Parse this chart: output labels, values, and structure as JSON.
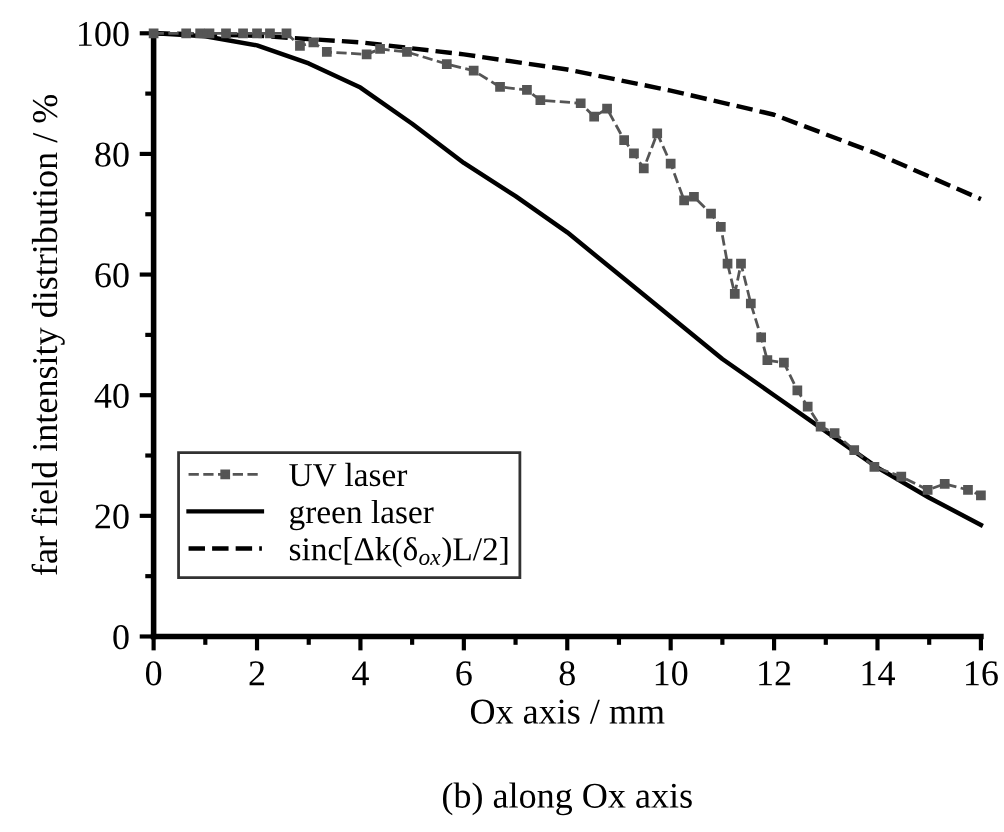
{
  "chart_data": {
    "type": "line",
    "title": "(b) along Ox axis",
    "xlabel": "Ox axis / mm",
    "ylabel": "far field intensity distribution / %",
    "xlim": [
      0,
      16
    ],
    "ylim": [
      0,
      100
    ],
    "xticks": [
      0,
      2,
      4,
      6,
      8,
      10,
      12,
      14,
      16
    ],
    "yticks": [
      0,
      20,
      40,
      60,
      80,
      100
    ],
    "grid": false,
    "legend": "lower left",
    "series": [
      {
        "name": "UV laser",
        "color": "#555555",
        "marker": "square",
        "line_style": "dashed",
        "x": [
          0,
          0.63,
          0.9,
          1.08,
          1.4,
          1.73,
          2.0,
          2.25,
          2.57,
          2.83,
          3.09,
          3.35,
          4.12,
          4.38,
          4.9,
          5.67,
          6.19,
          6.7,
          7.22,
          7.48,
          8.26,
          8.52,
          8.77,
          9.1,
          9.29,
          9.48,
          9.74,
          10.0,
          10.26,
          10.45,
          10.78,
          10.97,
          11.1,
          11.24,
          11.36,
          11.55,
          11.75,
          11.87,
          12.19,
          12.45,
          12.65,
          12.9,
          13.17,
          13.55,
          13.94,
          14.46,
          14.97,
          15.3,
          15.75,
          16.0
        ],
        "values": [
          100,
          100,
          100,
          100,
          100,
          100,
          100,
          100,
          100,
          97.9,
          98.5,
          96.9,
          96.5,
          97.4,
          96.9,
          94.9,
          93.8,
          91.1,
          90.6,
          88.9,
          88.4,
          86.2,
          87.5,
          82.3,
          80.1,
          77.6,
          83.4,
          78.4,
          72.3,
          72.9,
          70.1,
          67.9,
          61.8,
          56.8,
          61.8,
          55.2,
          49.6,
          45.8,
          45.4,
          40.8,
          38.1,
          34.8,
          33.7,
          30.9,
          28.1,
          26.5,
          24.3,
          25.3,
          24.3,
          23.4
        ]
      },
      {
        "name": "green laser",
        "color": "#000000",
        "marker": "none",
        "line_style": "solid",
        "x": [
          0,
          1,
          2,
          3,
          4,
          5,
          6,
          7,
          8,
          9,
          10,
          11,
          12,
          13,
          14,
          15,
          16
        ],
        "values": [
          100,
          99.5,
          98,
          95,
          91,
          85,
          78.5,
          73,
          67,
          60,
          53,
          46,
          40,
          34,
          28,
          23,
          18.5
        ]
      },
      {
        "name": "sinc[Δk(δ$_{ox}$)L/2]",
        "color": "#000000",
        "marker": "none",
        "line_style": "dashed",
        "x": [
          0,
          2,
          4,
          6,
          8,
          10,
          12,
          14,
          16
        ],
        "values": [
          100,
          99.6,
          98.5,
          96.5,
          94,
          90.5,
          86.5,
          80,
          72.5
        ]
      }
    ]
  }
}
